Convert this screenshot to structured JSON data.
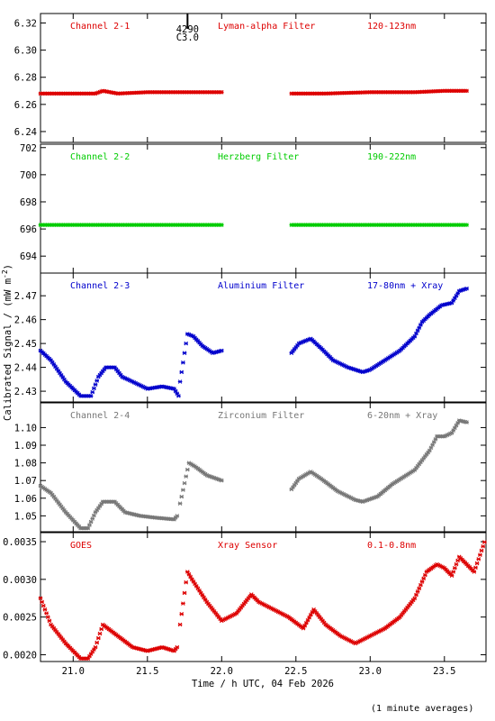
{
  "ylabel": "Calibrated Signal / (mW m",
  "ylabel_sup": "-2",
  "ylabel_close": ")",
  "xlabel": "Time / h UTC, 04 Feb 2026",
  "footnote": "(1 minute averages)",
  "event_marker": {
    "x": 21.77,
    "labels": [
      "4290",
      "C3.0"
    ]
  },
  "x_axis": {
    "range": [
      20.78,
      23.78
    ],
    "ticks": [
      "21.0",
      "21.5",
      "22.0",
      "22.5",
      "23.0",
      "23.5"
    ]
  },
  "chart_data": [
    {
      "type": "scatter",
      "panel": 1,
      "color": "#dd0000",
      "labels": [
        "Channel 2-1",
        "Lyman-alpha Filter",
        "120-123nm"
      ],
      "ylim": [
        6.232,
        6.327
      ],
      "yticks": [
        "6.24",
        "6.26",
        "6.28",
        "6.30",
        "6.32"
      ],
      "series": [
        {
          "x": [
            20.78,
            21.0,
            21.15,
            21.2,
            21.3,
            21.5,
            21.7,
            22.0
          ],
          "y": [
            6.268,
            6.268,
            6.268,
            6.27,
            6.268,
            6.269,
            6.269,
            6.269
          ]
        },
        {
          "x": [
            22.47,
            22.7,
            23.0,
            23.3,
            23.5,
            23.65
          ],
          "y": [
            6.268,
            6.268,
            6.269,
            6.269,
            6.27,
            6.27
          ]
        }
      ]
    },
    {
      "type": "scatter",
      "panel": 2,
      "color": "#00cc00",
      "labels": [
        "Channel 2-2",
        "Herzberg Filter",
        "190-222nm"
      ],
      "ylim": [
        692.75,
        702.25
      ],
      "yticks": [
        "694",
        "696",
        "698",
        "700",
        "702"
      ],
      "series": [
        {
          "x": [
            20.78,
            22.0
          ],
          "y": [
            696.3,
            696.3
          ]
        },
        {
          "x": [
            22.47,
            23.65
          ],
          "y": [
            696.3,
            696.3
          ]
        }
      ]
    },
    {
      "type": "scatter",
      "panel": 3,
      "color": "#0000cc",
      "labels": [
        "Channel 2-3",
        "Aluminium Filter",
        "17-80nm + Xray"
      ],
      "ylim": [
        2.4255,
        2.4795
      ],
      "yticks": [
        "2.43",
        "2.44",
        "2.45",
        "2.46",
        "2.47"
      ],
      "series": [
        {
          "x": [
            20.78,
            20.85,
            20.95,
            21.05,
            21.12,
            21.17,
            21.22,
            21.28,
            21.33,
            21.4,
            21.5,
            21.6,
            21.68,
            21.71
          ],
          "y": [
            2.447,
            2.443,
            2.434,
            2.428,
            2.428,
            2.436,
            2.44,
            2.44,
            2.436,
            2.434,
            2.431,
            2.432,
            2.431,
            2.428
          ]
        },
        {
          "x": [
            21.72,
            21.77,
            21.81,
            21.87,
            21.94,
            22.0
          ],
          "y": [
            2.434,
            2.454,
            2.453,
            2.449,
            2.446,
            2.447
          ]
        },
        {
          "x": [
            22.47,
            22.52,
            22.6,
            22.67,
            22.75,
            22.85,
            22.95,
            23.0,
            23.1,
            23.2,
            23.3,
            23.35,
            23.4,
            23.48,
            23.55,
            23.6,
            23.65
          ],
          "y": [
            2.446,
            2.45,
            2.452,
            2.448,
            2.443,
            2.44,
            2.438,
            2.439,
            2.443,
            2.447,
            2.453,
            2.459,
            2.462,
            2.466,
            2.467,
            2.472,
            2.473
          ]
        }
      ]
    },
    {
      "type": "scatter",
      "panel": 4,
      "color": "#777777",
      "labels": [
        "Channel 2-4",
        "Zirconium Filter",
        "6-20nm + Xray"
      ],
      "ylim": [
        1.041,
        1.114
      ],
      "yticks": [
        "1.05",
        "1.06",
        "1.07",
        "1.08",
        "1.09",
        "1.10"
      ],
      "series": [
        {
          "x": [
            20.78,
            20.85,
            20.95,
            21.05,
            21.1,
            21.15,
            21.2,
            21.28,
            21.35,
            21.45,
            21.55,
            21.68,
            21.7
          ],
          "y": [
            1.067,
            1.063,
            1.052,
            1.043,
            1.043,
            1.052,
            1.058,
            1.058,
            1.052,
            1.05,
            1.049,
            1.048,
            1.05
          ]
        },
        {
          "x": [
            21.72,
            21.78,
            21.82,
            21.9,
            22.0
          ],
          "y": [
            1.057,
            1.08,
            1.078,
            1.073,
            1.07
          ]
        },
        {
          "x": [
            22.47,
            22.52,
            22.6,
            22.67,
            22.78,
            22.9,
            22.95,
            23.05,
            23.15,
            23.3,
            23.4,
            23.45,
            23.5,
            23.55,
            23.6,
            23.65
          ],
          "y": [
            1.065,
            1.071,
            1.075,
            1.071,
            1.064,
            1.059,
            1.058,
            1.061,
            1.068,
            1.076,
            1.087,
            1.095,
            1.095,
            1.097,
            1.104,
            1.103
          ]
        }
      ]
    },
    {
      "type": "scatter",
      "panel": 5,
      "color": "#dd0000",
      "labels": [
        "GOES",
        "Xray Sensor",
        "0.1-0.8nm"
      ],
      "ylim": [
        0.00191,
        0.00362
      ],
      "yticks": [
        "0.0020",
        "0.0025",
        "0.0030",
        "0.0035"
      ],
      "series": [
        {
          "x": [
            20.78,
            20.85,
            20.95,
            21.05,
            21.1,
            21.15,
            21.2,
            21.3,
            21.4,
            21.5,
            21.6,
            21.68,
            21.7
          ],
          "y": [
            0.00275,
            0.0024,
            0.00215,
            0.00195,
            0.00195,
            0.0021,
            0.0024,
            0.00225,
            0.0021,
            0.00205,
            0.0021,
            0.00205,
            0.0021
          ]
        },
        {
          "x": [
            21.72,
            21.77,
            21.8,
            21.9,
            22.0,
            22.1,
            22.2,
            22.25,
            22.35,
            22.45,
            22.55,
            22.62,
            22.7,
            22.8,
            22.9,
            23.0,
            23.1,
            23.2,
            23.3,
            23.38,
            23.45,
            23.5,
            23.55,
            23.6,
            23.7,
            23.78
          ],
          "y": [
            0.0024,
            0.0031,
            0.003,
            0.0027,
            0.00245,
            0.00255,
            0.0028,
            0.0027,
            0.0026,
            0.0025,
            0.00235,
            0.0026,
            0.0024,
            0.00225,
            0.00215,
            0.00225,
            0.00235,
            0.0025,
            0.00275,
            0.0031,
            0.0032,
            0.00315,
            0.00305,
            0.0033,
            0.0031,
            0.00355
          ]
        }
      ]
    }
  ]
}
